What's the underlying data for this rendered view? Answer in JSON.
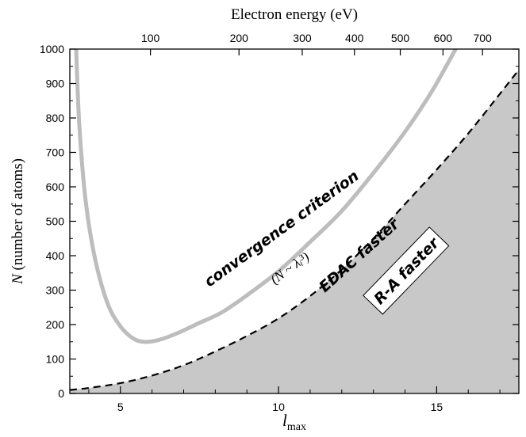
{
  "chart_data": {
    "type": "line",
    "xlabel": "l",
    "xlabel_sub": "max",
    "ylabel_italic": "N",
    "ylabel_rest": " (number of atoms)",
    "top_axis_label": "Electron energy (eV)",
    "xlim": [
      3.4,
      17.6
    ],
    "ylim": [
      0,
      1000
    ],
    "x_ticks": [
      5,
      10,
      15
    ],
    "y_ticks": [
      0,
      100,
      200,
      300,
      400,
      500,
      600,
      700,
      800,
      900,
      1000
    ],
    "top_ticks": [
      {
        "label": "100",
        "x": 5.95
      },
      {
        "label": "200",
        "x": 8.75
      },
      {
        "label": "300",
        "x": 10.75
      },
      {
        "label": "400",
        "x": 12.4
      },
      {
        "label": "500",
        "x": 13.85
      },
      {
        "label": "600",
        "x": 15.2
      },
      {
        "label": "700",
        "x": 16.45
      }
    ],
    "series": [
      {
        "style": "solid-gray",
        "color": "#bdbdbd",
        "x": [
          3.6,
          3.7,
          3.9,
          4.2,
          4.6,
          5.0,
          5.4,
          5.75,
          6.2,
          6.8,
          7.5,
          8.2,
          9.0,
          10.0,
          11.0,
          12.0,
          13.0,
          14.0,
          14.8,
          15.3,
          15.6
        ],
        "y": [
          1000,
          780,
          560,
          390,
          260,
          195,
          160,
          150,
          155,
          175,
          205,
          235,
          285,
          355,
          440,
          530,
          640,
          760,
          870,
          950,
          1000
        ]
      },
      {
        "style": "dashed-black",
        "color": "#000000",
        "x": [
          3.4,
          4.0,
          5.0,
          6.0,
          7.0,
          8.0,
          9.0,
          10.0,
          11.0,
          12.0,
          13.0,
          14.0,
          15.0,
          16.0,
          17.0,
          17.6
        ],
        "y": [
          10,
          16,
          30,
          52,
          82,
          122,
          167,
          218,
          283,
          360,
          450,
          550,
          650,
          755,
          870,
          940
        ]
      }
    ],
    "shaded_region": {
      "below_series": 1,
      "color": "#c8c8c8"
    },
    "annotations": [
      {
        "text": "convergence criterion",
        "x": 10.1,
        "y": 478,
        "angle": -36
      },
      {
        "text": "EDAC faster",
        "x": 12.55,
        "y": 400,
        "angle": -42
      },
      {
        "text": "R-A faster",
        "x": 14.05,
        "y": 355,
        "angle": -46,
        "boxed": true
      },
      {
        "text": "(N ~ λᵢ³)",
        "x": 10.35,
        "y": 365,
        "angle": -36
      }
    ],
    "grid": false
  }
}
